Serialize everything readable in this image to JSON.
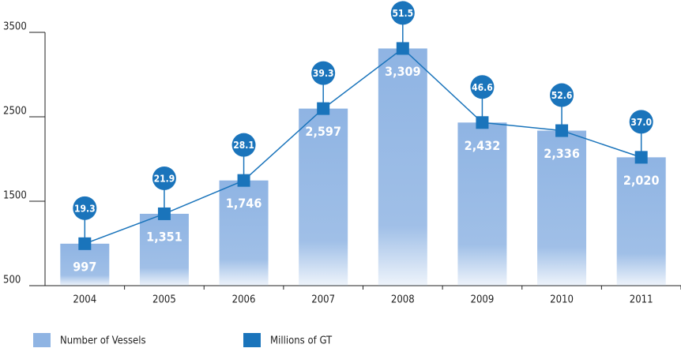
{
  "chart_data": {
    "type": "bar-line",
    "categories": [
      "2004",
      "2005",
      "2006",
      "2007",
      "2008",
      "2009",
      "2010",
      "2011"
    ],
    "series": [
      {
        "name": "Number of Vessels",
        "color": "#8fb4e3",
        "values": [
          997,
          1351,
          1746,
          2597,
          3309,
          2432,
          2336,
          2020
        ],
        "value_labels": [
          "997",
          "1,351",
          "1,746",
          "2,597",
          "3,309",
          "2,432",
          "2,336",
          "2,020"
        ]
      },
      {
        "name": "Millions of GT",
        "color": "#1a74bb",
        "values": [
          19.3,
          21.9,
          28.1,
          39.3,
          51.5,
          46.6,
          52.6,
          37.0
        ],
        "value_labels": [
          "19.3",
          "21.9",
          "28.1",
          "39.3",
          "51.5",
          "46.6",
          "52.6",
          "37.0"
        ]
      }
    ],
    "ylim": [
      500,
      3500
    ],
    "yticks": [
      500,
      1500,
      2500,
      3500
    ]
  }
}
